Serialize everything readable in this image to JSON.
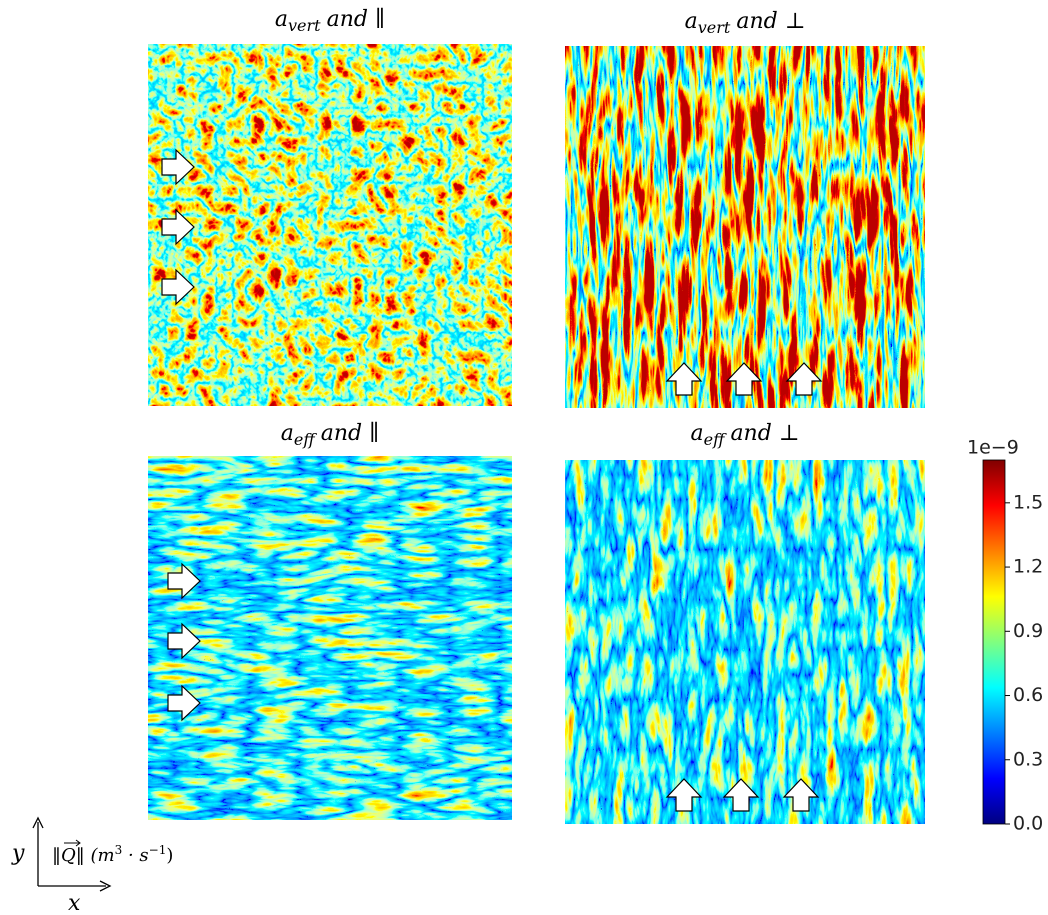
{
  "panels": [
    {
      "title": {
        "symbol": "a",
        "subscript": "vert",
        "text": "and ∥"
      }
    },
    {
      "title": {
        "symbol": "a",
        "subscript": "vert",
        "text": "and ⊥"
      }
    },
    {
      "title": {
        "symbol": "a",
        "subscript": "eff",
        "text": "and ∥"
      }
    },
    {
      "title": {
        "symbol": "a",
        "subscript": "eff",
        "text": "and ⊥"
      }
    }
  ],
  "colorbar": {
    "exponent": "1e−9",
    "lim": [
      0,
      1.7
    ],
    "ticks": [
      {
        "value": 0,
        "label": "0.0"
      },
      {
        "value": 0.3,
        "label": "0.3"
      },
      {
        "value": 0.6,
        "label": "0.6"
      },
      {
        "value": 0.9,
        "label": "0.9"
      },
      {
        "value": 1.2,
        "label": "1.2"
      },
      {
        "value": 1.5,
        "label": "1.5"
      }
    ]
  },
  "quantity_label": {
    "quantity": "Q",
    "unit_parts": [
      "(m",
      "3",
      " · s",
      "−1",
      ")"
    ]
  },
  "axes": {
    "x": "x",
    "y": "y"
  }
}
